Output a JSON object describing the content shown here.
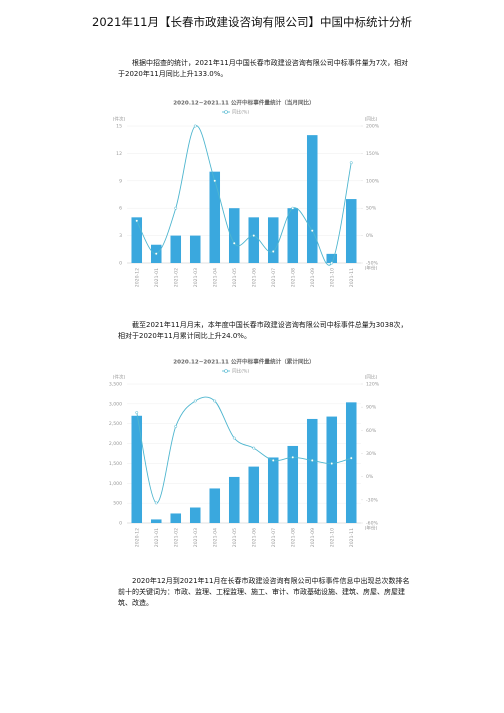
{
  "title": "2021年11月【长春市政建设咨询有限公司】中国中标统计分析",
  "paragraphs": [
    "根据中招查的统计，2021年11月中国长春市政建设咨询有限公司中标事件量为7次，相对于2020年11月同比上升133.0%。",
    "截至2021年11月月末，本年度中国长春市政建设咨询有限公司中标事件总量为3038次，相对于2020年11月累计同比上升24.0%。",
    "2020年12月到2021年11月在长春市政建设咨询有限公司中标事件信息中出现总次数排名前十的关键词为：市政、监理、工程监理、施工、审计、市政基础设施、建筑、房屋、房屋建筑、改造。"
  ],
  "chart_data": [
    {
      "type": "bar",
      "title": "2020.12~2021.11 公开中标事件量统计（当月同比）",
      "y_label": "(件次)",
      "y2_label": "(同比)",
      "x_label": "(年份)",
      "grid": true,
      "categories": [
        "2020-12",
        "2021-01",
        "2021-02",
        "2021-03",
        "2021-04",
        "2021-05",
        "2021-06",
        "2021-07",
        "2021-08",
        "2021-09",
        "2021-10",
        "2021-11"
      ],
      "series": [
        {
          "color": "#3aa8de",
          "values": [
            5,
            2,
            3,
            3,
            10,
            6,
            5,
            5,
            6,
            14,
            1,
            7
          ]
        },
        {
          "name": "同比(%)",
          "type": "line",
          "axis": "y2",
          "color": "#4fb6cf",
          "values": [
            27,
            -33,
            50,
            200,
            100,
            -14,
            0,
            -29,
            50,
            9,
            -50,
            133
          ]
        }
      ],
      "ylim": [
        0,
        15
      ],
      "yticks": [
        0,
        3,
        6,
        9,
        12,
        15
      ],
      "y2lim": [
        -50,
        200
      ],
      "y2ticks": [
        {
          "value": -50,
          "label": "-50%"
        },
        {
          "value": 0,
          "label": "0%"
        },
        {
          "value": 50,
          "label": "50%"
        },
        {
          "value": 100,
          "label": "100%"
        },
        {
          "value": 150,
          "label": "150%"
        },
        {
          "value": 200,
          "label": "200%"
        }
      ]
    },
    {
      "type": "bar",
      "title": "2020.12~2021.11 公开中标事件量统计（累计同比）",
      "y_label": "(件次)",
      "y2_label": "(同比)",
      "x_label": "(年份)",
      "grid": true,
      "categories": [
        "2020-12",
        "2021-01",
        "2021-02",
        "2021-03",
        "2021-04",
        "2021-05",
        "2021-06",
        "2021-07",
        "2021-08",
        "2021-09",
        "2021-10",
        "2021-11"
      ],
      "series": [
        {
          "color": "#3aa8de",
          "values": [
            2700,
            90,
            240,
            390,
            870,
            1160,
            1420,
            1650,
            1940,
            2620,
            2680,
            3038
          ]
        },
        {
          "name": "同比(%)",
          "type": "line",
          "axis": "y2",
          "color": "#4fb6cf",
          "values": [
            83,
            -34,
            65,
            98,
            98,
            50,
            37,
            21,
            25,
            21,
            17,
            24
          ]
        }
      ],
      "ylim": [
        0,
        3500
      ],
      "yticks": [
        0,
        500,
        {
          "value": 1000,
          "label": "1,000"
        },
        {
          "value": 1500,
          "label": "1,500"
        },
        {
          "value": 2000,
          "label": "2,000"
        },
        {
          "value": 2500,
          "label": "2,500"
        },
        {
          "value": 3000,
          "label": "3,000"
        },
        {
          "value": 3500,
          "label": "3,500"
        }
      ],
      "y2lim": [
        -60,
        120
      ],
      "y2ticks": [
        {
          "value": -60,
          "label": "-60%"
        },
        {
          "value": -30,
          "label": "-30%"
        },
        {
          "value": 0,
          "label": "0%"
        },
        {
          "value": 30,
          "label": "30%"
        },
        {
          "value": 60,
          "label": "60%"
        },
        {
          "value": 90,
          "label": "90%"
        },
        {
          "value": 120,
          "label": "120%"
        }
      ]
    }
  ]
}
